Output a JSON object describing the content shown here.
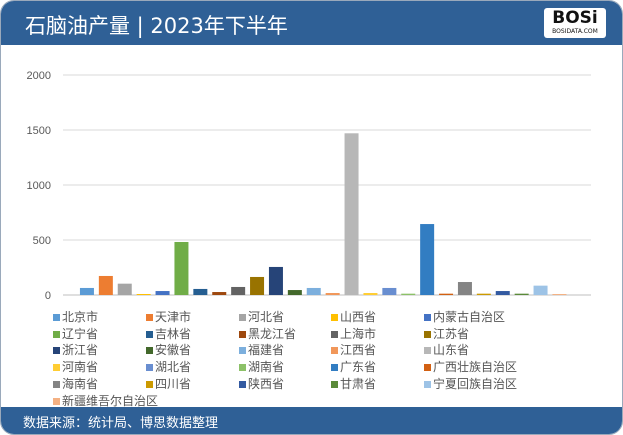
{
  "header": {
    "title": "石脑油产量 | 2023年下半年",
    "logo_text": "BOSi",
    "logo_sub": "BOSIDATA.COM"
  },
  "footer": {
    "source": "数据来源：统计局、博思数据整理"
  },
  "chart_data": {
    "type": "bar",
    "title": "石脑油产量 | 2023年下半年",
    "ylim": [
      0,
      2000
    ],
    "yticks": [
      0,
      500,
      1000,
      1500,
      2000
    ],
    "grid": true,
    "legend_position": "bottom",
    "categories": [
      "北京市",
      "天津市",
      "河北省",
      "山西省",
      "内蒙古自治区",
      "辽宁省",
      "吉林省",
      "黑龙江省",
      "上海市",
      "江苏省",
      "浙江省",
      "安徽省",
      "福建省",
      "江西省",
      "山东省",
      "河南省",
      "湖北省",
      "湖南省",
      "广东省",
      "广西壮族自治区",
      "海南省",
      "四川省",
      "陕西省",
      "甘肃省",
      "宁夏回族自治区",
      "新疆维吾尔自治区"
    ],
    "values": [
      64,
      173,
      103,
      9,
      36,
      482,
      55,
      27,
      73,
      164,
      255,
      45,
      64,
      18,
      1470,
      18,
      64,
      12,
      645,
      12,
      118,
      12,
      36,
      12,
      85,
      9
    ],
    "colors": [
      "#5B9BD5",
      "#ED7D31",
      "#A5A5A5",
      "#FFC000",
      "#4472C4",
      "#70AD47",
      "#255E91",
      "#9E480E",
      "#636363",
      "#997300",
      "#264478",
      "#43682B",
      "#7CAFDD",
      "#F1975A",
      "#B7B7B7",
      "#FFCD33",
      "#698ED0",
      "#8CC168",
      "#327DC2",
      "#D26012",
      "#848484",
      "#CC9A00",
      "#335AA1",
      "#5A8A39",
      "#9DC3E6",
      "#F4B183"
    ]
  }
}
